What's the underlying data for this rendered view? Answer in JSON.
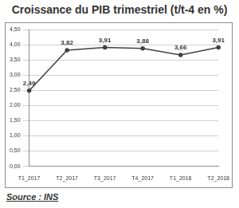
{
  "chart_data": {
    "type": "line",
    "title": "Croissance du PIB trimestriel (t/t-4 en %)",
    "source": "Source : INS",
    "categories": [
      "T1_2017",
      "T2_2017",
      "T3_2017",
      "T4_2017",
      "T1_2018",
      "T2_2018"
    ],
    "values": [
      2.49,
      3.82,
      3.91,
      3.88,
      3.66,
      3.91
    ],
    "value_labels": [
      "2,49",
      "3,82",
      "3,91",
      "3,88",
      "3,66",
      "3,91"
    ],
    "data_labels": true,
    "color": "#404040",
    "marker": "circle",
    "ylim": [
      0,
      4.5
    ],
    "yticks": [
      {
        "value": 0,
        "label": "0,00"
      },
      {
        "value": 0.5,
        "label": "0,50"
      },
      {
        "value": 1,
        "label": "1,00"
      },
      {
        "value": 1.5,
        "label": "1,50"
      },
      {
        "value": 2,
        "label": "2,00"
      },
      {
        "value": 2.5,
        "label": "2,50"
      },
      {
        "value": 3,
        "label": "3,00"
      },
      {
        "value": 3.5,
        "label": "3,50"
      },
      {
        "value": 4,
        "label": "4,00"
      },
      {
        "value": 4.5,
        "label": "4,50"
      }
    ],
    "grid": true
  }
}
